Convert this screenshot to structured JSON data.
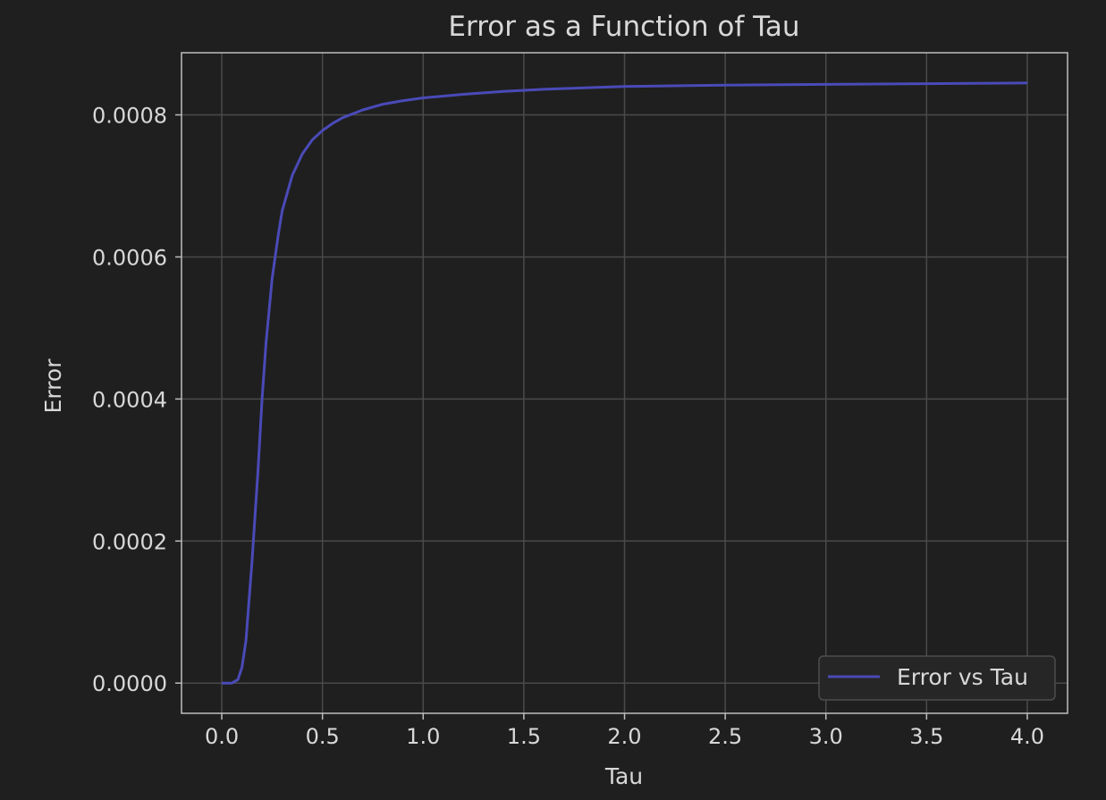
{
  "chart_data": {
    "type": "line",
    "title": "Error as a Function of Tau",
    "xlabel": "Tau",
    "ylabel": "Error",
    "xlim": [
      -0.2,
      4.2
    ],
    "ylim": [
      -4.25e-05,
      0.0008875
    ],
    "xticks": [
      0.0,
      0.5,
      1.0,
      1.5,
      2.0,
      2.5,
      3.0,
      3.5,
      4.0
    ],
    "xtick_labels": [
      "0.0",
      "0.5",
      "1.0",
      "1.5",
      "2.0",
      "2.5",
      "3.0",
      "3.5",
      "4.0"
    ],
    "yticks": [
      0.0,
      0.0002,
      0.0004,
      0.0006,
      0.0008
    ],
    "ytick_labels": [
      "0.0000",
      "0.0002",
      "0.0004",
      "0.0006",
      "0.0008"
    ],
    "grid": true,
    "legend_position": "lower-right",
    "series": [
      {
        "name": "Error vs Tau",
        "color": "#4a4ab8",
        "x": [
          0.0,
          0.05,
          0.08,
          0.1,
          0.12,
          0.15,
          0.18,
          0.2,
          0.22,
          0.25,
          0.28,
          0.3,
          0.35,
          0.4,
          0.45,
          0.5,
          0.55,
          0.6,
          0.7,
          0.8,
          0.9,
          1.0,
          1.2,
          1.4,
          1.6,
          1.8,
          2.0,
          2.5,
          3.0,
          3.5,
          4.0
        ],
        "y": [
          0.0,
          0.0,
          5e-06,
          2.2e-05,
          6e-05,
          0.00017,
          0.0003,
          0.0004,
          0.00048,
          0.00057,
          0.00063,
          0.000665,
          0.000715,
          0.000745,
          0.000765,
          0.000778,
          0.000788,
          0.000796,
          0.000807,
          0.000815,
          0.00082,
          0.000824,
          0.000829,
          0.000833,
          0.000836,
          0.000838,
          0.00084,
          0.000842,
          0.000843,
          0.000844,
          0.000845
        ]
      }
    ]
  }
}
